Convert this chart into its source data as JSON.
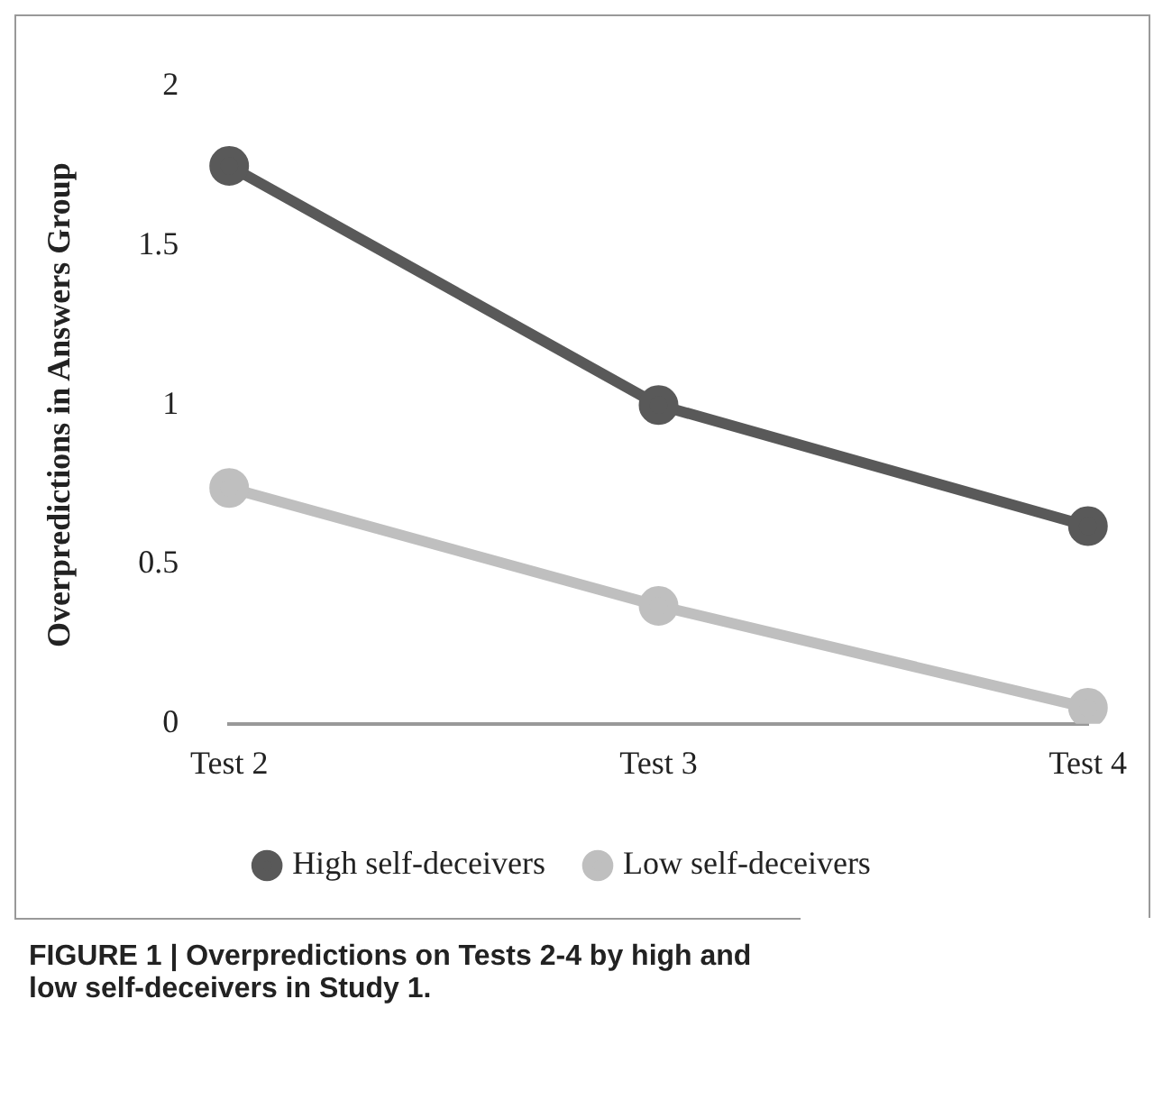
{
  "chart_data": {
    "type": "line",
    "title": "FIGURE 1 | Overpredictions on Tests 2-4 by high and low self-deceivers in Study 1.",
    "ylabel": "Overpredictions in Answers Group",
    "categories": [
      "Test 2",
      "Test 3",
      "Test 4"
    ],
    "series": [
      {
        "name": "High self-deceivers",
        "color": "#595959",
        "values": [
          1.75,
          1.0,
          0.62
        ]
      },
      {
        "name": "Low self-deceivers",
        "color": "#bfbfbf",
        "values": [
          0.74,
          0.37,
          0.05
        ]
      }
    ],
    "ylim": [
      0,
      2
    ],
    "yticks": [
      0,
      0.5,
      1,
      1.5,
      2
    ],
    "grid": false,
    "legend": "bottom",
    "marker": "circle",
    "line_style": "solid"
  }
}
